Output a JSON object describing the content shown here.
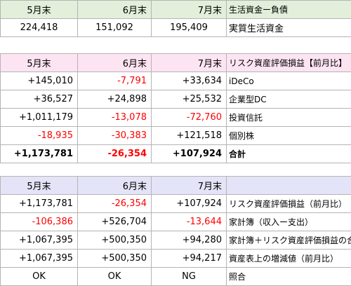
{
  "tables": [
    {
      "header_color": "#e2efda",
      "header": [
        "5月末",
        "6月末",
        "7月末",
        "生活資金ー負債"
      ],
      "rows": [
        [
          "224,418",
          "151,092",
          "195,409",
          "実質生活資金"
        ]
      ]
    },
    {
      "header_color": "#fde4f2",
      "header": [
        "5月末",
        "6月末",
        "7月末",
        "リスク資産評価損益【前月比】"
      ],
      "rows": [
        [
          "+145,010",
          "-7,791",
          "+33,634",
          "iDeCo"
        ],
        [
          "+36,527",
          "+24,898",
          "+25,532",
          "企業型DC"
        ],
        [
          "+1,011,179",
          "-13,078",
          "-72,760",
          "投資信託"
        ],
        [
          "-18,935",
          "-30,383",
          "+121,518",
          "個別株"
        ],
        [
          "+1,173,781",
          "-26,354",
          "+107,924",
          "合計"
        ]
      ],
      "bold_rows": [
        4
      ]
    },
    {
      "header_color": "#e4e4f8",
      "header": [
        "5月末",
        "6月末",
        "7月末",
        ""
      ],
      "rows": [
        [
          "+1,173,781",
          "-26,354",
          "+107,924",
          "リスク資産評価損益（前月比）"
        ],
        [
          "-106,386",
          "+526,704",
          "-13,644",
          "家計簿（収入ー支出）"
        ],
        [
          "+1,067,395",
          "+500,350",
          "+94,280",
          "家計簿＋リスク資産評価損益の合計"
        ],
        [
          "+1,067,395",
          "+500,350",
          "+94,217",
          "資産表上の増減値（前月比）"
        ],
        [
          "OK",
          "OK",
          "NG",
          "照合"
        ]
      ]
    }
  ],
  "negative_color": "#ff0000"
}
